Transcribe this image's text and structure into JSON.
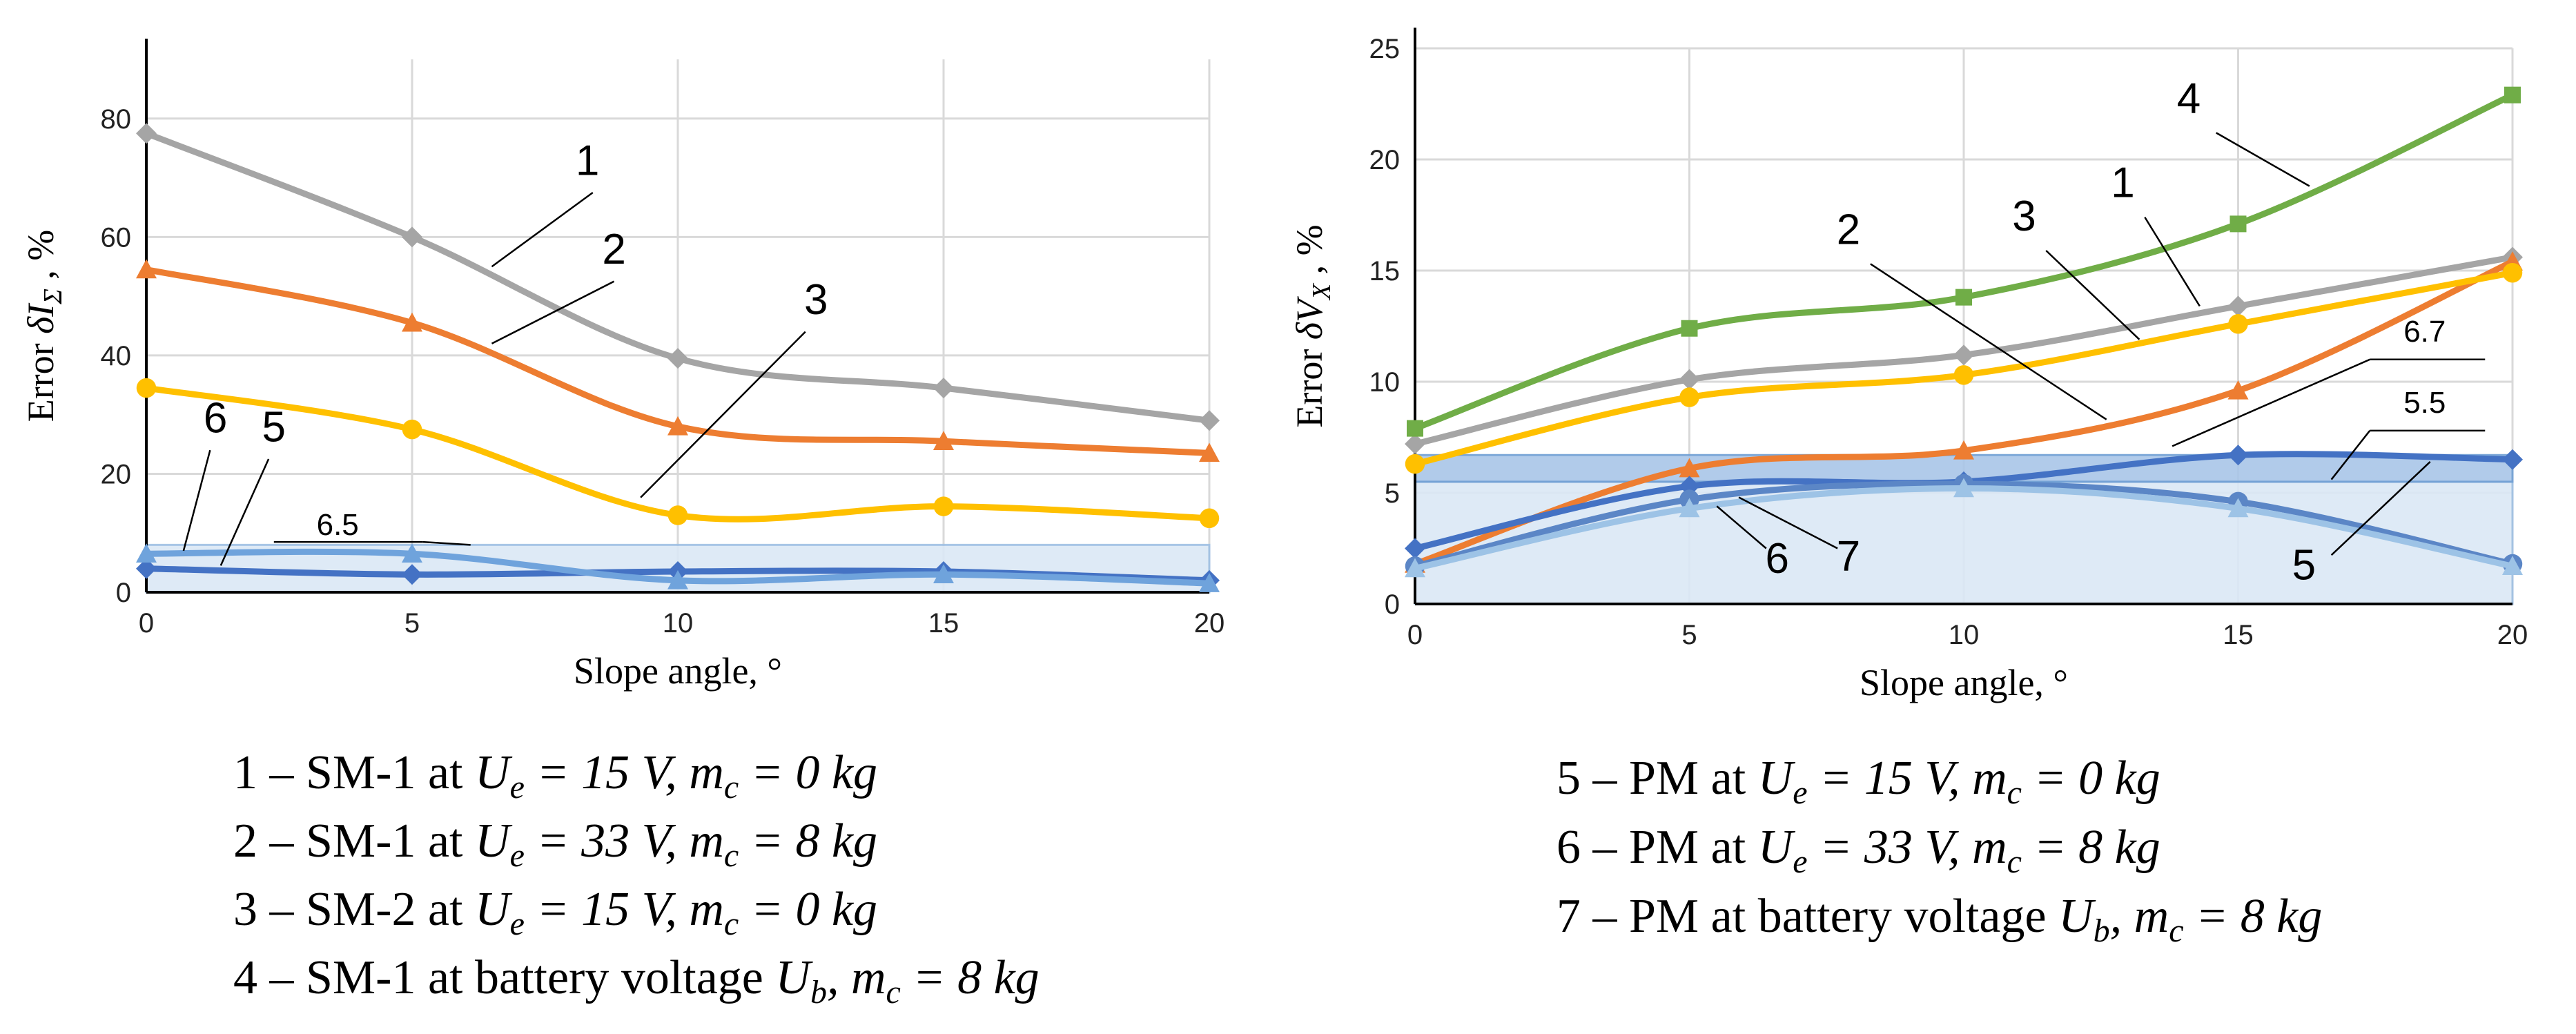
{
  "chart_data": [
    {
      "type": "line",
      "id": "left",
      "xlabel": "Slope angle, °",
      "ylabel": "Error δI_Σ , %",
      "ylabel_parts": {
        "prefix": "Error",
        "symbol": "δI",
        "subscript": "Σ",
        "suffix": ", %"
      },
      "xlim": [
        0,
        20
      ],
      "ylim": [
        0,
        90
      ],
      "x_ticks": [
        0,
        5,
        10,
        15,
        20
      ],
      "y_ticks": [
        0,
        20,
        40,
        60,
        80
      ],
      "x_tick_labels": [
        "0",
        "5",
        "10",
        "15",
        "20"
      ],
      "y_tick_labels": [
        "0",
        "20",
        "40",
        "60",
        "80"
      ],
      "bands": [
        {
          "y0": 0,
          "y1": 8,
          "color": "#dbe8f6",
          "stroke": "#9fc0e4"
        }
      ],
      "threshold_label": {
        "text": "6.5",
        "x": 3.6,
        "y": 8.5
      },
      "x": [
        0,
        5,
        10,
        15,
        20
      ],
      "series": [
        {
          "name": "1",
          "values": [
            77.5,
            60,
            39.5,
            34.5,
            29
          ],
          "color": "#a5a5a5",
          "marker": "diamond"
        },
        {
          "name": "2",
          "values": [
            54.5,
            45.5,
            28,
            25.5,
            23.5
          ],
          "color": "#ed7d31",
          "marker": "triangle"
        },
        {
          "name": "3",
          "values": [
            34.5,
            27.5,
            13,
            14.5,
            12.5
          ],
          "color": "#ffc000",
          "marker": "circle"
        },
        {
          "name": "5",
          "values": [
            4,
            3,
            3.5,
            3.5,
            2
          ],
          "color": "#4472c4",
          "marker": "diamond"
        },
        {
          "name": "6",
          "values": [
            6.5,
            6.5,
            2,
            3,
            1.5
          ],
          "color": "#6fa3dc",
          "marker": "triangle"
        }
      ],
      "callouts": [
        {
          "text": "1",
          "tx": 8.3,
          "ty": 70.5,
          "x1": 8.4,
          "y1": 67.5,
          "x2": 6.5,
          "y2": 55
        },
        {
          "text": "2",
          "tx": 8.8,
          "ty": 55.5,
          "x1": 8.8,
          "y1": 52.5,
          "x2": 6.5,
          "y2": 42
        },
        {
          "text": "3",
          "tx": 12.6,
          "ty": 47,
          "x1": 12.4,
          "y1": 44,
          "x2": 9.3,
          "y2": 16
        },
        {
          "text": "6",
          "tx": 1.3,
          "ty": 27,
          "x1": 1.2,
          "y1": 24,
          "x2": 0.7,
          "y2": 7
        },
        {
          "text": "5",
          "tx": 2.4,
          "ty": 25.5,
          "x1": 2.3,
          "y1": 22.5,
          "x2": 1.4,
          "y2": 4.5
        }
      ]
    },
    {
      "type": "line",
      "id": "right",
      "xlabel": "Slope angle, °",
      "ylabel": "Error δV_X , %",
      "ylabel_parts": {
        "prefix": "Error",
        "symbol": "δV",
        "subscript": "X",
        "suffix": ", %"
      },
      "xlim": [
        0,
        20
      ],
      "ylim": [
        0,
        25
      ],
      "x_ticks": [
        0,
        5,
        10,
        15,
        20
      ],
      "y_ticks": [
        0,
        5,
        10,
        15,
        20,
        25
      ],
      "x_tick_labels": [
        "0",
        "5",
        "10",
        "15",
        "20"
      ],
      "y_tick_labels": [
        "0",
        "5",
        "10",
        "15",
        "20",
        "25"
      ],
      "bands": [
        {
          "y0": 0,
          "y1": 5.5,
          "color": "#dbe8f6",
          "stroke": "#9fc0e4"
        },
        {
          "y0": 5.5,
          "y1": 6.7,
          "color": "#a9c6e8",
          "stroke": "#6f9fd4"
        }
      ],
      "x": [
        0,
        5,
        10,
        15,
        20
      ],
      "series": [
        {
          "name": "1",
          "values": [
            7.2,
            10.1,
            11.2,
            13.4,
            15.6
          ],
          "color": "#a5a5a5",
          "marker": "diamond"
        },
        {
          "name": "2",
          "values": [
            1.8,
            6.1,
            6.9,
            9.6,
            15.4
          ],
          "color": "#ed7d31",
          "marker": "triangle"
        },
        {
          "name": "3",
          "values": [
            6.3,
            9.3,
            10.3,
            12.6,
            14.9
          ],
          "color": "#ffc000",
          "marker": "circle"
        },
        {
          "name": "4",
          "values": [
            7.9,
            12.4,
            13.8,
            17.1,
            22.9
          ],
          "color": "#70ad47",
          "marker": "square"
        },
        {
          "name": "5",
          "values": [
            2.5,
            5.3,
            5.5,
            6.7,
            6.5
          ],
          "color": "#4472c4",
          "marker": "diamond"
        },
        {
          "name": "6",
          "values": [
            1.7,
            4.7,
            5.4,
            4.6,
            1.8
          ],
          "color": "#5b86c6",
          "marker": "circle"
        },
        {
          "name": "7",
          "values": [
            1.6,
            4.3,
            5.2,
            4.3,
            1.7
          ],
          "color": "#9dc3e6",
          "marker": "triangle"
        }
      ],
      "threshold_labels": [
        {
          "text": "6.7",
          "tx": 18.4,
          "ty": 11.8,
          "x1": 17.4,
          "y1": 11,
          "x2": 19.5,
          "y2": 11,
          "x3": 13.8,
          "y3": 7.1
        },
        {
          "text": "5.5",
          "tx": 18.4,
          "ty": 8.6,
          "x1": 17.4,
          "y1": 7.8,
          "x2": 19.5,
          "y2": 7.8,
          "x3": 16.7,
          "y3": 5.6
        }
      ],
      "callouts": [
        {
          "text": "4",
          "tx": 14.1,
          "ty": 22.1,
          "x1": 14.6,
          "y1": 21.2,
          "x2": 16.3,
          "y2": 18.8
        },
        {
          "text": "3",
          "tx": 11.1,
          "ty": 16.8,
          "x1": 11.5,
          "y1": 15.9,
          "x2": 13.2,
          "y2": 11.9
        },
        {
          "text": "1",
          "tx": 12.9,
          "ty": 18.3,
          "x1": 13.3,
          "y1": 17.4,
          "x2": 14.3,
          "y2": 13.4
        },
        {
          "text": "2",
          "tx": 7.9,
          "ty": 16.2,
          "x1": 8.3,
          "y1": 15.3,
          "x2": 12.6,
          "y2": 8.3
        },
        {
          "text": "6",
          "tx": 6.6,
          "ty": 1.4,
          "x1": 6.4,
          "y1": 2.5,
          "x2": 5.5,
          "y2": 4.4
        },
        {
          "text": "7",
          "tx": 7.9,
          "ty": 1.5,
          "x1": 7.7,
          "y1": 2.5,
          "x2": 5.9,
          "y2": 4.8
        },
        {
          "text": "5",
          "tx": 16.2,
          "ty": 1.1,
          "x1": 16.7,
          "y1": 2.2,
          "x2": 18.5,
          "y2": 6.4
        }
      ]
    }
  ],
  "legend_left": [
    {
      "text": "1 – SM-1 at ",
      "u": "U",
      "us": "e",
      "rest": " = 15 V, ",
      "m": "m",
      "ms": "c",
      "tail": " = 0 kg"
    },
    {
      "text": "2 – SM-1 at ",
      "u": "U",
      "us": "e",
      "rest": " = 33 V, ",
      "m": "m",
      "ms": "c",
      "tail": " = 8 kg"
    },
    {
      "text": "3 – SM-2 at ",
      "u": "U",
      "us": "e",
      "rest": " = 15 V, ",
      "m": "m",
      "ms": "c",
      "tail": " = 0 kg"
    },
    {
      "text": "4 – SM-1 at battery voltage ",
      "u": "U",
      "us": "b",
      "rest": ", ",
      "m": "m",
      "ms": "c",
      "tail": " = 8 kg"
    }
  ],
  "legend_right": [
    {
      "text": "5 – PM at ",
      "u": "U",
      "us": "e",
      "rest": " = 15 V, ",
      "m": "m",
      "ms": "c",
      "tail": " = 0 kg"
    },
    {
      "text": "6 – PM at ",
      "u": "U",
      "us": "e",
      "rest": " = 33 V, ",
      "m": "m",
      "ms": "c",
      "tail": " = 8 kg"
    },
    {
      "text": "7 – PM at battery voltage ",
      "u": "U",
      "us": "b",
      "rest": ", ",
      "m": "m",
      "ms": "c",
      "tail": " = 8 kg"
    }
  ]
}
